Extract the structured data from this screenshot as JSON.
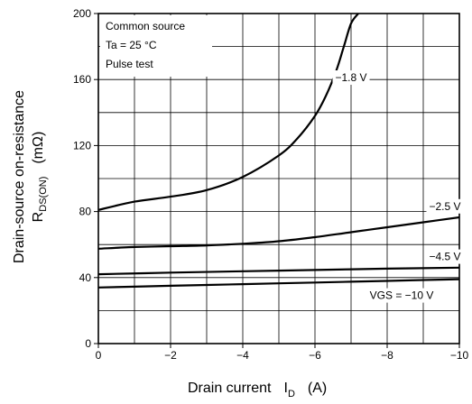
{
  "chart_data": {
    "type": "line",
    "title": "",
    "xlabel": {
      "prefix": "Drain current",
      "symbol": "I",
      "subscript": "D",
      "unit": "(A)"
    },
    "ylabel": {
      "line1": "Drain-source on-resistance",
      "symbol": "R",
      "subscript": "DS(ON)",
      "unit": "(mΩ)"
    },
    "xlim": [
      0,
      -10
    ],
    "ylim": [
      0,
      200
    ],
    "x_ticks": [
      "0",
      "−2",
      "−4",
      "−6",
      "−8",
      "−10"
    ],
    "y_ticks": [
      "0",
      "40",
      "80",
      "120",
      "160",
      "200"
    ],
    "grid": true,
    "conditions": [
      "Common source",
      "Ta = 25 °C",
      "Pulse test"
    ],
    "series": [
      {
        "name": "−1.8 V",
        "x": [
          0,
          -1,
          -2,
          -3,
          -4,
          -5,
          -5.5,
          -6,
          -6.3,
          -6.6,
          -6.8,
          -7.0,
          -7.2
        ],
        "y": [
          81,
          86,
          89,
          93,
          101,
          114,
          124,
          138,
          150,
          166,
          180,
          194,
          200
        ]
      },
      {
        "name": "−2.5 V",
        "x": [
          0,
          -1,
          -2,
          -3,
          -4,
          -5,
          -6,
          -7,
          -8,
          -9,
          -10
        ],
        "y": [
          57.5,
          58.5,
          59,
          59.5,
          60.5,
          62,
          64.5,
          67.5,
          70.5,
          73.5,
          76.5
        ]
      },
      {
        "name": "−4.5 V",
        "x": [
          0,
          -2,
          -4,
          -6,
          -8,
          -10
        ],
        "y": [
          42,
          43,
          43.8,
          44.6,
          45.4,
          46
        ]
      },
      {
        "name": "VGS = −10 V",
        "x": [
          0,
          -2,
          -4,
          -6,
          -8,
          -10
        ],
        "y": [
          34,
          35,
          36,
          37,
          38,
          39
        ]
      }
    ],
    "annotations": [
      {
        "text": "−1.8 V",
        "x": -7.0,
        "y": 159
      },
      {
        "text": "−2.5 V",
        "x": -9.6,
        "y": 81
      },
      {
        "text": "−4.5 V",
        "x": -9.6,
        "y": 50.5
      },
      {
        "text": "VGS = −10 V",
        "x": -8.4,
        "y": 27
      }
    ]
  }
}
